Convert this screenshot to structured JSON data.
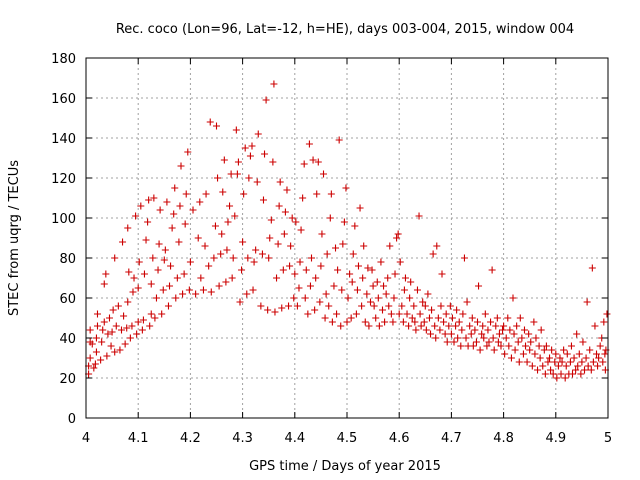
{
  "chart_data": {
    "type": "scatter",
    "title": "Rec. coco (Lon=96, Lat=-12, h=HE), days 003-004, 2015, window 004",
    "xlabel": "GPS time / Days of year 2015",
    "ylabel": "STEC from uqrg / TECUs",
    "xlim": [
      4,
      5
    ],
    "ylim": [
      0,
      180
    ],
    "xticks": [
      "4",
      "4.1",
      "4.2",
      "4.3",
      "4.4",
      "4.5",
      "4.6",
      "4.7",
      "4.8",
      "4.9",
      "5"
    ],
    "yticks": [
      "0",
      "20",
      "40",
      "60",
      "80",
      "100",
      "120",
      "140",
      "160",
      "180"
    ],
    "grid": true,
    "marker": "+",
    "color": "#cc0000",
    "points": [
      [
        4.005,
        22
      ],
      [
        4.005,
        26
      ],
      [
        4.008,
        30
      ],
      [
        4.008,
        38
      ],
      [
        4.008,
        44
      ],
      [
        4.012,
        37
      ],
      [
        4.015,
        25
      ],
      [
        4.018,
        27
      ],
      [
        4.02,
        33
      ],
      [
        4.02,
        40
      ],
      [
        4.022,
        46
      ],
      [
        4.022,
        52
      ],
      [
        4.028,
        29
      ],
      [
        4.03,
        38
      ],
      [
        4.032,
        44
      ],
      [
        4.035,
        48
      ],
      [
        4.035,
        67
      ],
      [
        4.038,
        72
      ],
      [
        4.04,
        31
      ],
      [
        4.042,
        42
      ],
      [
        4.045,
        50
      ],
      [
        4.048,
        36
      ],
      [
        4.05,
        43
      ],
      [
        4.052,
        54
      ],
      [
        4.055,
        33
      ],
      [
        4.055,
        80
      ],
      [
        4.058,
        46
      ],
      [
        4.062,
        56
      ],
      [
        4.065,
        34
      ],
      [
        4.068,
        44
      ],
      [
        4.07,
        88
      ],
      [
        4.072,
        51
      ],
      [
        4.075,
        37
      ],
      [
        4.078,
        45
      ],
      [
        4.08,
        58
      ],
      [
        4.08,
        95
      ],
      [
        4.082,
        73
      ],
      [
        4.085,
        40
      ],
      [
        4.088,
        46
      ],
      [
        4.09,
        63
      ],
      [
        4.092,
        70
      ],
      [
        4.095,
        101
      ],
      [
        4.097,
        42
      ],
      [
        4.1,
        48
      ],
      [
        4.1,
        65
      ],
      [
        4.102,
        78
      ],
      [
        4.105,
        106
      ],
      [
        4.108,
        44
      ],
      [
        4.11,
        49
      ],
      [
        4.112,
        72
      ],
      [
        4.115,
        89
      ],
      [
        4.118,
        98
      ],
      [
        4.12,
        109
      ],
      [
        4.122,
        46
      ],
      [
        4.125,
        52
      ],
      [
        4.125,
        67
      ],
      [
        4.128,
        80
      ],
      [
        4.13,
        110
      ],
      [
        4.132,
        50
      ],
      [
        4.135,
        60
      ],
      [
        4.138,
        74
      ],
      [
        4.14,
        87
      ],
      [
        4.142,
        104
      ],
      [
        4.145,
        52
      ],
      [
        4.148,
        64
      ],
      [
        4.15,
        79
      ],
      [
        4.152,
        84
      ],
      [
        4.155,
        108
      ],
      [
        4.158,
        56
      ],
      [
        4.16,
        66
      ],
      [
        4.162,
        76
      ],
      [
        4.165,
        95
      ],
      [
        4.168,
        102
      ],
      [
        4.17,
        115
      ],
      [
        4.172,
        60
      ],
      [
        4.175,
        70
      ],
      [
        4.178,
        88
      ],
      [
        4.18,
        106
      ],
      [
        4.182,
        126
      ],
      [
        4.185,
        62
      ],
      [
        4.188,
        72
      ],
      [
        4.19,
        97
      ],
      [
        4.192,
        112
      ],
      [
        4.195,
        133
      ],
      [
        4.198,
        64
      ],
      [
        4.2,
        78
      ],
      [
        4.205,
        104
      ],
      [
        4.21,
        62
      ],
      [
        4.215,
        90
      ],
      [
        4.218,
        108
      ],
      [
        4.22,
        70
      ],
      [
        4.225,
        64
      ],
      [
        4.228,
        86
      ],
      [
        4.23,
        112
      ],
      [
        4.235,
        76
      ],
      [
        4.238,
        148
      ],
      [
        4.24,
        63
      ],
      [
        4.245,
        80
      ],
      [
        4.248,
        96
      ],
      [
        4.25,
        146
      ],
      [
        4.252,
        120
      ],
      [
        4.255,
        66
      ],
      [
        4.258,
        82
      ],
      [
        4.26,
        92
      ],
      [
        4.262,
        113
      ],
      [
        4.265,
        129
      ],
      [
        4.268,
        68
      ],
      [
        4.27,
        84
      ],
      [
        4.272,
        98
      ],
      [
        4.275,
        106
      ],
      [
        4.278,
        122
      ],
      [
        4.28,
        70
      ],
      [
        4.282,
        80
      ],
      [
        4.285,
        101
      ],
      [
        4.288,
        144
      ],
      [
        4.29,
        122
      ],
      [
        4.292,
        128
      ],
      [
        4.295,
        58
      ],
      [
        4.298,
        74
      ],
      [
        4.3,
        88
      ],
      [
        4.302,
        112
      ],
      [
        4.305,
        135
      ],
      [
        4.308,
        62
      ],
      [
        4.31,
        80
      ],
      [
        4.312,
        120
      ],
      [
        4.315,
        131
      ],
      [
        4.318,
        136
      ],
      [
        4.32,
        64
      ],
      [
        4.322,
        78
      ],
      [
        4.325,
        84
      ],
      [
        4.328,
        118
      ],
      [
        4.33,
        142
      ],
      [
        4.335,
        56
      ],
      [
        4.338,
        82
      ],
      [
        4.34,
        109
      ],
      [
        4.342,
        132
      ],
      [
        4.345,
        159
      ],
      [
        4.348,
        54
      ],
      [
        4.35,
        80
      ],
      [
        4.352,
        90
      ],
      [
        4.355,
        99
      ],
      [
        4.358,
        128
      ],
      [
        4.36,
        167
      ],
      [
        4.362,
        53
      ],
      [
        4.365,
        70
      ],
      [
        4.368,
        87
      ],
      [
        4.37,
        106
      ],
      [
        4.372,
        118
      ],
      [
        4.375,
        55
      ],
      [
        4.378,
        74
      ],
      [
        4.38,
        92
      ],
      [
        4.382,
        103
      ],
      [
        4.385,
        114
      ],
      [
        4.388,
        56
      ],
      [
        4.39,
        76
      ],
      [
        4.392,
        86
      ],
      [
        4.395,
        100
      ],
      [
        4.398,
        60
      ],
      [
        4.4,
        72
      ],
      [
        4.402,
        98
      ],
      [
        4.405,
        56
      ],
      [
        4.408,
        65
      ],
      [
        4.41,
        78
      ],
      [
        4.412,
        94
      ],
      [
        4.415,
        110
      ],
      [
        4.418,
        127
      ],
      [
        4.42,
        60
      ],
      [
        4.422,
        74
      ],
      [
        4.425,
        52
      ],
      [
        4.428,
        137
      ],
      [
        4.43,
        66
      ],
      [
        4.432,
        80
      ],
      [
        4.435,
        129
      ],
      [
        4.438,
        54
      ],
      [
        4.44,
        70
      ],
      [
        4.442,
        112
      ],
      [
        4.445,
        128
      ],
      [
        4.448,
        58
      ],
      [
        4.45,
        76
      ],
      [
        4.452,
        92
      ],
      [
        4.455,
        122
      ],
      [
        4.458,
        50
      ],
      [
        4.46,
        62
      ],
      [
        4.462,
        82
      ],
      [
        4.465,
        56
      ],
      [
        4.468,
        100
      ],
      [
        4.47,
        112
      ],
      [
        4.472,
        48
      ],
      [
        4.475,
        66
      ],
      [
        4.478,
        85
      ],
      [
        4.48,
        52
      ],
      [
        4.482,
        74
      ],
      [
        4.485,
        139
      ],
      [
        4.488,
        46
      ],
      [
        4.49,
        64
      ],
      [
        4.492,
        87
      ],
      [
        4.495,
        98
      ],
      [
        4.498,
        115
      ],
      [
        4.5,
        48
      ],
      [
        4.502,
        60
      ],
      [
        4.505,
        72
      ],
      [
        4.508,
        50
      ],
      [
        4.51,
        68
      ],
      [
        4.512,
        82
      ],
      [
        4.515,
        96
      ],
      [
        4.518,
        52
      ],
      [
        4.52,
        64
      ],
      [
        4.522,
        76
      ],
      [
        4.525,
        105
      ],
      [
        4.528,
        56
      ],
      [
        4.53,
        70
      ],
      [
        4.532,
        86
      ],
      [
        4.535,
        48
      ],
      [
        4.538,
        62
      ],
      [
        4.54,
        75
      ],
      [
        4.542,
        46
      ],
      [
        4.545,
        58
      ],
      [
        4.548,
        74
      ],
      [
        4.55,
        66
      ],
      [
        4.552,
        56
      ],
      [
        4.555,
        50
      ],
      [
        4.558,
        68
      ],
      [
        4.56,
        60
      ],
      [
        4.562,
        46
      ],
      [
        4.565,
        78
      ],
      [
        4.568,
        54
      ],
      [
        4.57,
        66
      ],
      [
        4.572,
        48
      ],
      [
        4.575,
        62
      ],
      [
        4.578,
        70
      ],
      [
        4.58,
        56
      ],
      [
        4.582,
        86
      ],
      [
        4.585,
        52
      ],
      [
        4.588,
        48
      ],
      [
        4.59,
        60
      ],
      [
        4.592,
        72
      ],
      [
        4.595,
        90
      ],
      [
        4.598,
        92
      ],
      [
        4.6,
        52
      ],
      [
        4.602,
        78
      ],
      [
        4.605,
        56
      ],
      [
        4.608,
        48
      ],
      [
        4.61,
        64
      ],
      [
        4.612,
        70
      ],
      [
        4.615,
        52
      ],
      [
        4.618,
        46
      ],
      [
        4.62,
        60
      ],
      [
        4.622,
        68
      ],
      [
        4.625,
        50
      ],
      [
        4.628,
        56
      ],
      [
        4.63,
        48
      ],
      [
        4.632,
        44
      ],
      [
        4.635,
        64
      ],
      [
        4.638,
        101
      ],
      [
        4.64,
        52
      ],
      [
        4.642,
        46
      ],
      [
        4.645,
        58
      ],
      [
        4.648,
        48
      ],
      [
        4.65,
        56
      ],
      [
        4.652,
        44
      ],
      [
        4.655,
        62
      ],
      [
        4.658,
        50
      ],
      [
        4.66,
        42
      ],
      [
        4.662,
        54
      ],
      [
        4.665,
        82
      ],
      [
        4.668,
        46
      ],
      [
        4.67,
        40
      ],
      [
        4.672,
        86
      ],
      [
        4.675,
        50
      ],
      [
        4.678,
        44
      ],
      [
        4.68,
        56
      ],
      [
        4.682,
        72
      ],
      [
        4.685,
        48
      ],
      [
        4.688,
        42
      ],
      [
        4.69,
        52
      ],
      [
        4.692,
        38
      ],
      [
        4.695,
        46
      ],
      [
        4.698,
        56
      ],
      [
        4.7,
        42
      ],
      [
        4.702,
        50
      ],
      [
        4.705,
        38
      ],
      [
        4.708,
        46
      ],
      [
        4.71,
        54
      ],
      [
        4.712,
        40
      ],
      [
        4.715,
        48
      ],
      [
        4.718,
        36
      ],
      [
        4.72,
        44
      ],
      [
        4.722,
        52
      ],
      [
        4.725,
        80
      ],
      [
        4.728,
        40
      ],
      [
        4.73,
        58
      ],
      [
        4.732,
        36
      ],
      [
        4.735,
        46
      ],
      [
        4.738,
        42
      ],
      [
        4.74,
        50
      ],
      [
        4.742,
        36
      ],
      [
        4.745,
        44
      ],
      [
        4.748,
        38
      ],
      [
        4.75,
        48
      ],
      [
        4.752,
        66
      ],
      [
        4.755,
        34
      ],
      [
        4.758,
        42
      ],
      [
        4.76,
        46
      ],
      [
        4.762,
        40
      ],
      [
        4.765,
        52
      ],
      [
        4.768,
        36
      ],
      [
        4.77,
        44
      ],
      [
        4.772,
        38
      ],
      [
        4.775,
        48
      ],
      [
        4.778,
        74
      ],
      [
        4.78,
        40
      ],
      [
        4.782,
        34
      ],
      [
        4.785,
        46
      ],
      [
        4.788,
        50
      ],
      [
        4.79,
        38
      ],
      [
        4.792,
        42
      ],
      [
        4.795,
        36
      ],
      [
        4.798,
        44
      ],
      [
        4.8,
        46
      ],
      [
        4.802,
        32
      ],
      [
        4.805,
        40
      ],
      [
        4.808,
        50
      ],
      [
        4.81,
        36
      ],
      [
        4.812,
        44
      ],
      [
        4.815,
        30
      ],
      [
        4.818,
        60
      ],
      [
        4.82,
        42
      ],
      [
        4.822,
        34
      ],
      [
        4.825,
        46
      ],
      [
        4.828,
        38
      ],
      [
        4.83,
        28
      ],
      [
        4.832,
        50
      ],
      [
        4.835,
        40
      ],
      [
        4.838,
        32
      ],
      [
        4.84,
        44
      ],
      [
        4.842,
        36
      ],
      [
        4.845,
        28
      ],
      [
        4.848,
        42
      ],
      [
        4.85,
        34
      ],
      [
        4.852,
        38
      ],
      [
        4.855,
        26
      ],
      [
        4.858,
        48
      ],
      [
        4.86,
        32
      ],
      [
        4.862,
        40
      ],
      [
        4.865,
        24
      ],
      [
        4.868,
        36
      ],
      [
        4.87,
        30
      ],
      [
        4.872,
        44
      ],
      [
        4.875,
        26
      ],
      [
        4.878,
        34
      ],
      [
        4.88,
        22
      ],
      [
        4.882,
        36
      ],
      [
        4.885,
        28
      ],
      [
        4.888,
        30
      ],
      [
        4.89,
        24
      ],
      [
        4.892,
        34
      ],
      [
        4.895,
        22
      ],
      [
        4.898,
        28
      ],
      [
        4.9,
        32
      ],
      [
        4.902,
        20
      ],
      [
        4.905,
        26
      ],
      [
        4.908,
        30
      ],
      [
        4.91,
        22
      ],
      [
        4.912,
        28
      ],
      [
        4.915,
        34
      ],
      [
        4.918,
        20
      ],
      [
        4.92,
        26
      ],
      [
        4.922,
        32
      ],
      [
        4.925,
        22
      ],
      [
        4.928,
        28
      ],
      [
        4.93,
        36
      ],
      [
        4.932,
        22
      ],
      [
        4.935,
        30
      ],
      [
        4.938,
        24
      ],
      [
        4.94,
        42
      ],
      [
        4.942,
        26
      ],
      [
        4.945,
        32
      ],
      [
        4.948,
        22
      ],
      [
        4.95,
        28
      ],
      [
        4.952,
        38
      ],
      [
        4.955,
        24
      ],
      [
        4.958,
        30
      ],
      [
        4.96,
        58
      ],
      [
        4.962,
        26
      ],
      [
        4.965,
        34
      ],
      [
        4.968,
        24
      ],
      [
        4.97,
        75
      ],
      [
        4.972,
        28
      ],
      [
        4.975,
        46
      ],
      [
        4.978,
        32
      ],
      [
        4.98,
        26
      ],
      [
        4.982,
        30
      ],
      [
        4.985,
        36
      ],
      [
        4.988,
        40
      ],
      [
        4.99,
        28
      ],
      [
        4.992,
        48
      ],
      [
        4.995,
        24
      ],
      [
        4.998,
        52
      ],
      [
        4.996,
        34
      ],
      [
        4.994,
        32
      ]
    ]
  }
}
